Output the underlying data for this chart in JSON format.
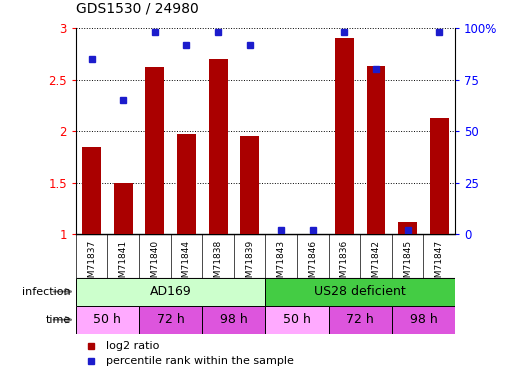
{
  "title": "GDS1530 / 24980",
  "samples": [
    "GSM71837",
    "GSM71841",
    "GSM71840",
    "GSM71844",
    "GSM71838",
    "GSM71839",
    "GSM71843",
    "GSM71846",
    "GSM71836",
    "GSM71842",
    "GSM71845",
    "GSM71847"
  ],
  "log2_ratio": [
    1.85,
    1.5,
    2.62,
    1.97,
    2.7,
    1.95,
    1.0,
    1.0,
    2.9,
    2.63,
    1.12,
    2.13
  ],
  "percentile_rank": [
    85,
    65,
    98,
    92,
    98,
    92,
    2,
    2,
    98,
    80,
    2,
    98
  ],
  "bar_color": "#aa0000",
  "dot_color": "#1c1ccc",
  "ylim_left": [
    1.0,
    3.0
  ],
  "ylim_right": [
    0,
    100
  ],
  "yticks_left": [
    1.0,
    1.5,
    2.0,
    2.5,
    3.0
  ],
  "yticks_right": [
    0,
    25,
    50,
    75,
    100
  ],
  "infection_groups": [
    {
      "label": "AD169",
      "start": 0,
      "end": 6,
      "color": "#ccffcc"
    },
    {
      "label": "US28 deficient",
      "start": 6,
      "end": 12,
      "color": "#44cc44"
    }
  ],
  "time_groups": [
    {
      "label": "50 h",
      "start": 0,
      "end": 2,
      "color": "#ffaaff"
    },
    {
      "label": "72 h",
      "start": 2,
      "end": 4,
      "color": "#dd55dd"
    },
    {
      "label": "98 h",
      "start": 4,
      "end": 6,
      "color": "#dd55dd"
    },
    {
      "label": "50 h",
      "start": 6,
      "end": 8,
      "color": "#ffaaff"
    },
    {
      "label": "72 h",
      "start": 8,
      "end": 10,
      "color": "#dd55dd"
    },
    {
      "label": "98 h",
      "start": 10,
      "end": 12,
      "color": "#dd55dd"
    }
  ],
  "legend_items": [
    {
      "color": "#aa0000",
      "label": "log2 ratio"
    },
    {
      "color": "#1c1ccc",
      "label": "percentile rank within the sample"
    }
  ],
  "bg_color": "#ffffff",
  "label_bg": "#cccccc",
  "row_label_color": "#555555"
}
